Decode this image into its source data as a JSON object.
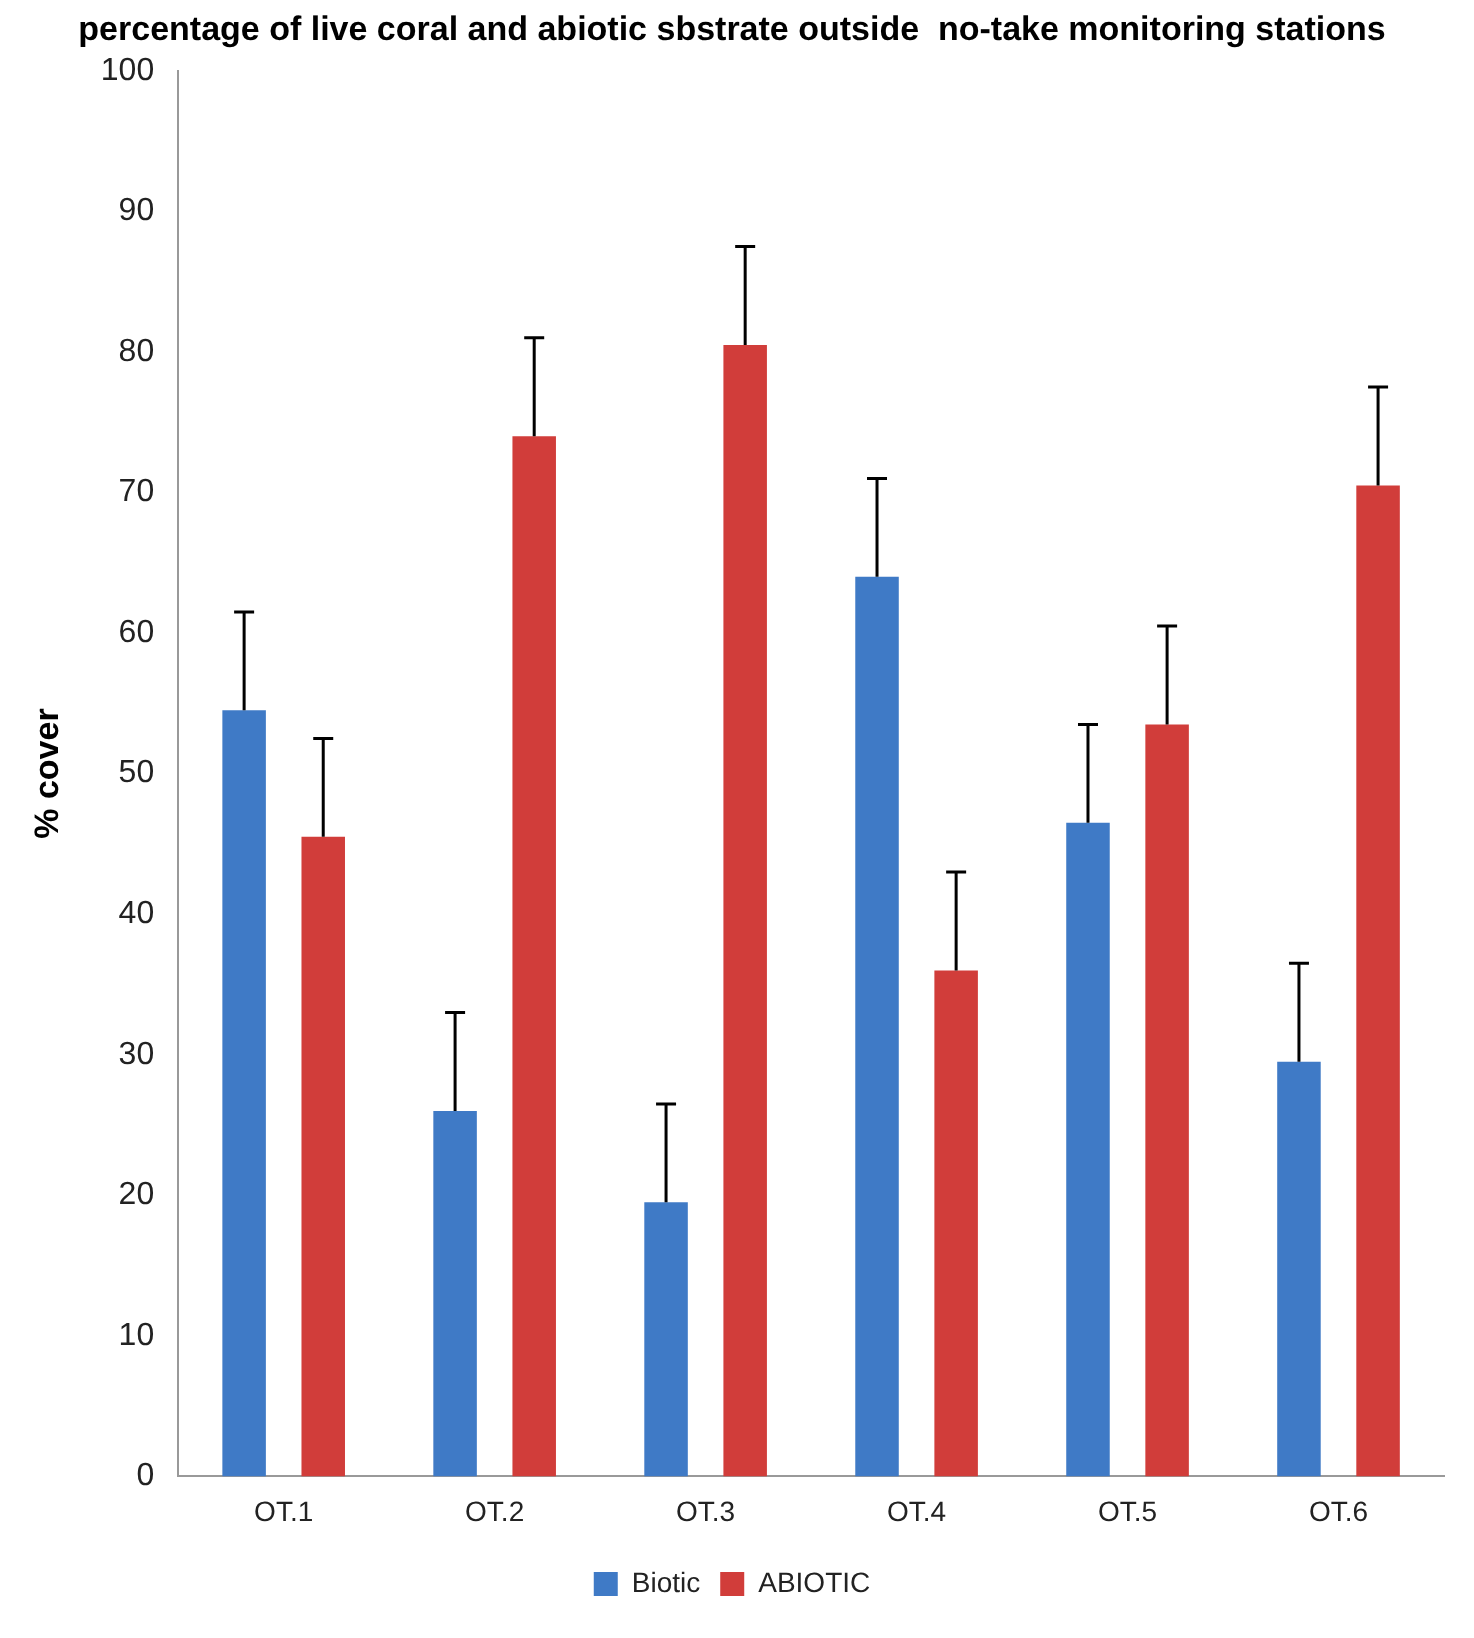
{
  "chart_data": {
    "type": "bar",
    "title": "percentage of live coral and abiotic sbstrate outside  no-take monitoring stations",
    "ylabel": "% cover",
    "categories": [
      "OT.1",
      "OT.2",
      "OT.3",
      "OT.4",
      "OT.5",
      "OT.6"
    ],
    "series": [
      {
        "name": "Biotic",
        "color": "#3f7ac6",
        "values": [
          54.5,
          26,
          19.5,
          64,
          46.5,
          29.5
        ],
        "errors": [
          [
            54.5,
            61.5
          ],
          [
            26,
            33
          ],
          [
            19.5,
            26.5
          ],
          [
            64,
            71
          ],
          [
            46.5,
            53.5
          ],
          [
            29.5,
            36.5
          ]
        ]
      },
      {
        "name": "ABIOTIC",
        "color": "#d13d3a",
        "values": [
          45.5,
          74,
          80.5,
          36,
          53.5,
          70.5
        ],
        "errors": [
          [
            45.5,
            52.5
          ],
          [
            74,
            81
          ],
          [
            80.5,
            87.5
          ],
          [
            36,
            43
          ],
          [
            53.5,
            60.5
          ],
          [
            70.5,
            77.5
          ]
        ]
      }
    ],
    "ylim": [
      0,
      100
    ],
    "yticks": [
      0,
      10,
      20,
      30,
      40,
      50,
      60,
      70,
      80,
      90,
      100
    ],
    "grid": false,
    "legend": "bottom"
  }
}
